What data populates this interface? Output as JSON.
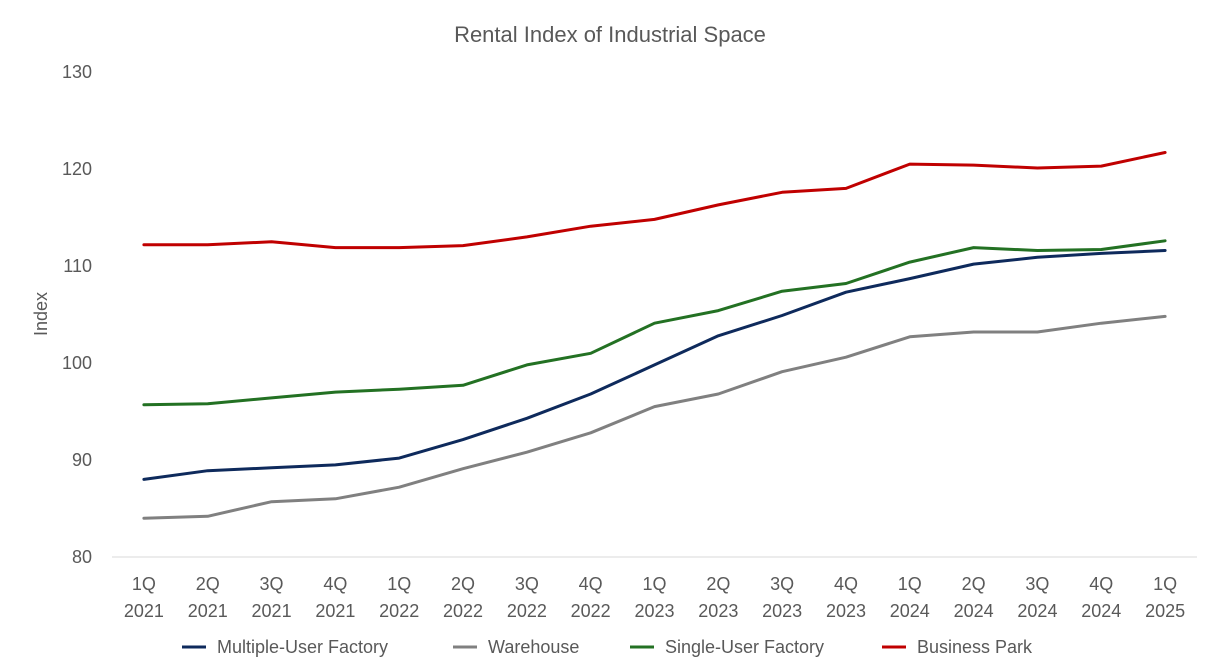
{
  "chart_data": {
    "type": "line",
    "title": "Rental Index of Industrial Space",
    "xlabel": "",
    "ylabel": "Index",
    "ylim": [
      80,
      130
    ],
    "yticks": [
      80,
      90,
      100,
      110,
      120,
      130
    ],
    "grid": "horizontal baseline only",
    "legend_position": "bottom",
    "categories": [
      [
        "1Q",
        "2021"
      ],
      [
        "2Q",
        "2021"
      ],
      [
        "3Q",
        "2021"
      ],
      [
        "4Q",
        "2021"
      ],
      [
        "1Q",
        "2022"
      ],
      [
        "2Q",
        "2022"
      ],
      [
        "3Q",
        "2022"
      ],
      [
        "4Q",
        "2022"
      ],
      [
        "1Q",
        "2023"
      ],
      [
        "2Q",
        "2023"
      ],
      [
        "3Q",
        "2023"
      ],
      [
        "4Q",
        "2023"
      ],
      [
        "1Q",
        "2024"
      ],
      [
        "2Q",
        "2024"
      ],
      [
        "3Q",
        "2024"
      ],
      [
        "4Q",
        "2024"
      ],
      [
        "1Q",
        "2025"
      ]
    ],
    "series": [
      {
        "name": "Multiple-User Factory",
        "color": "#0e2a5c",
        "values": [
          88.0,
          88.9,
          89.2,
          89.5,
          90.2,
          92.1,
          94.3,
          96.8,
          99.8,
          102.8,
          104.9,
          107.3,
          108.7,
          110.2,
          110.9,
          111.3,
          111.6
        ]
      },
      {
        "name": "Warehouse",
        "color": "#808080",
        "values": [
          84.0,
          84.2,
          85.7,
          86.0,
          87.2,
          89.1,
          90.8,
          92.8,
          95.5,
          96.8,
          99.1,
          100.6,
          102.7,
          103.2,
          103.2,
          104.1,
          104.8
        ]
      },
      {
        "name": "Single-User Factory",
        "color": "#237123",
        "values": [
          95.7,
          95.8,
          96.4,
          97.0,
          97.3,
          97.7,
          99.8,
          101.0,
          104.1,
          105.4,
          107.4,
          108.2,
          110.4,
          111.9,
          111.6,
          111.7,
          112.6
        ]
      },
      {
        "name": "Business Park",
        "color": "#c00000",
        "values": [
          112.2,
          112.2,
          112.5,
          111.9,
          111.9,
          112.1,
          113.0,
          114.1,
          114.8,
          116.3,
          117.6,
          118.0,
          120.5,
          120.4,
          120.1,
          120.3,
          121.7
        ]
      }
    ]
  }
}
